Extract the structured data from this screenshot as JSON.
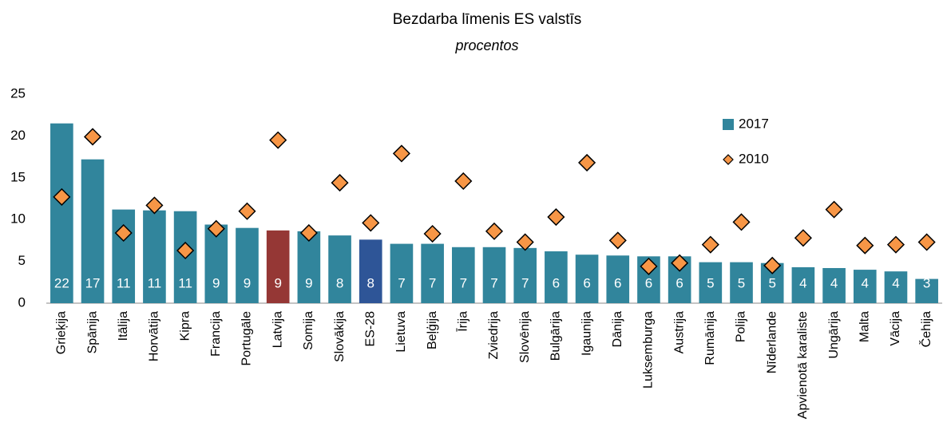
{
  "chart_data": {
    "type": "bar",
    "title": "Bezdarba līmenis ES valstīs",
    "subtitle": "procentos",
    "categories": [
      "Grieķija",
      "Spānija",
      "Itālija",
      "Horvātija",
      "Kipra",
      "Francija",
      "Portugāle",
      "Latvija",
      "Somija",
      "Slovākija",
      "ES-28",
      "Lietuva",
      "Beļģija",
      "Īrija",
      "Zviedrija",
      "Slovēnija",
      "Bulgārija",
      "Igaunija",
      "Dānija",
      "Luksemburga",
      "Austrija",
      "Rumānija",
      "Polija",
      "Nīderlande",
      "Apvienotā karaliste",
      "Ungārija",
      "Malta",
      "Vācija",
      "Čehija"
    ],
    "series": [
      {
        "name": "2017",
        "type": "bar",
        "color": "#31859c",
        "colors": [
          "#31859c",
          "#31859c",
          "#31859c",
          "#31859c",
          "#31859c",
          "#31859c",
          "#31859c",
          "#953735",
          "#31859c",
          "#31859c",
          "#2e5597",
          "#31859c",
          "#31859c",
          "#31859c",
          "#31859c",
          "#31859c",
          "#31859c",
          "#31859c",
          "#31859c",
          "#31859c",
          "#31859c",
          "#31859c",
          "#31859c",
          "#31859c",
          "#31859c",
          "#31859c",
          "#31859c",
          "#31859c",
          "#31859c"
        ],
        "values": [
          21.5,
          17.2,
          11.2,
          11.1,
          11.0,
          9.4,
          9.0,
          8.7,
          8.6,
          8.1,
          7.6,
          7.1,
          7.1,
          6.7,
          6.7,
          6.6,
          6.2,
          5.8,
          5.7,
          5.6,
          5.6,
          4.9,
          4.9,
          4.8,
          4.3,
          4.2,
          4.0,
          3.8,
          2.9
        ],
        "value_labels": [
          "22",
          "17",
          "11",
          "11",
          "11",
          "9",
          "9",
          "9",
          "9",
          "8",
          "8",
          "7",
          "7",
          "7",
          "7",
          "7",
          "6",
          "6",
          "6",
          "6",
          "6",
          "5",
          "5",
          "5",
          "4",
          "4",
          "4",
          "4",
          "3"
        ]
      },
      {
        "name": "2010",
        "type": "scatter",
        "color": "#f79646",
        "values": [
          12.7,
          19.9,
          8.4,
          11.7,
          6.3,
          8.9,
          11.0,
          19.5,
          8.4,
          14.4,
          9.6,
          17.9,
          8.3,
          14.6,
          8.6,
          7.3,
          10.3,
          16.8,
          7.5,
          4.4,
          4.8,
          7.0,
          9.7,
          4.5,
          7.8,
          11.2,
          6.9,
          7.0,
          7.3
        ]
      }
    ],
    "ylim": [
      0,
      25
    ],
    "yticks": [
      0,
      5,
      10,
      15,
      20,
      25
    ],
    "grid": false,
    "legend": "upper right"
  }
}
